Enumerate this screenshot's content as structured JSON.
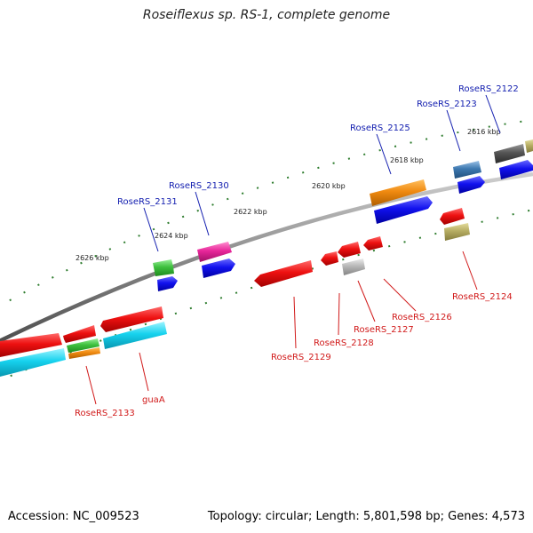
{
  "title": "Roseiflexus sp. RS-1, complete genome",
  "footer": {
    "accession": "Accession: NC_009523",
    "stats": "Topology: circular; Length: 5,801,598 bp; Genes: 4,573"
  },
  "tick_labels": [
    "2626 kbp",
    "2624 kbp",
    "2622 kbp",
    "2620 kbp",
    "2618 kbp",
    "2616 kbp"
  ],
  "forward_gene_labels": [
    "RoseRS_2131",
    "RoseRS_2130",
    "RoseRS_2125",
    "RoseRS_2123",
    "RoseRS_2122"
  ],
  "reverse_gene_labels": [
    "RoseRS_2133",
    "guaA",
    "RoseRS_2129",
    "RoseRS_2128",
    "RoseRS_2127",
    "RoseRS_2126",
    "RoseRS_2124"
  ],
  "colors": {
    "forward_label": "#1520b0",
    "reverse_label": "#d11a1a",
    "backbone": "#8a8a8a",
    "tick": "#2f7d2f",
    "cds_red": "#ee1111",
    "cds_blue": "#1111ee",
    "cds_cyan": "#16d2ee",
    "cds_orange": "#f08a10",
    "cds_green": "#3ec03e",
    "cds_magenta": "#e8269a",
    "cds_steel": "#3d78b0",
    "cds_gray": "#555555",
    "cds_olive": "#b6ad63",
    "cds_silver": "#b8b8b8"
  }
}
